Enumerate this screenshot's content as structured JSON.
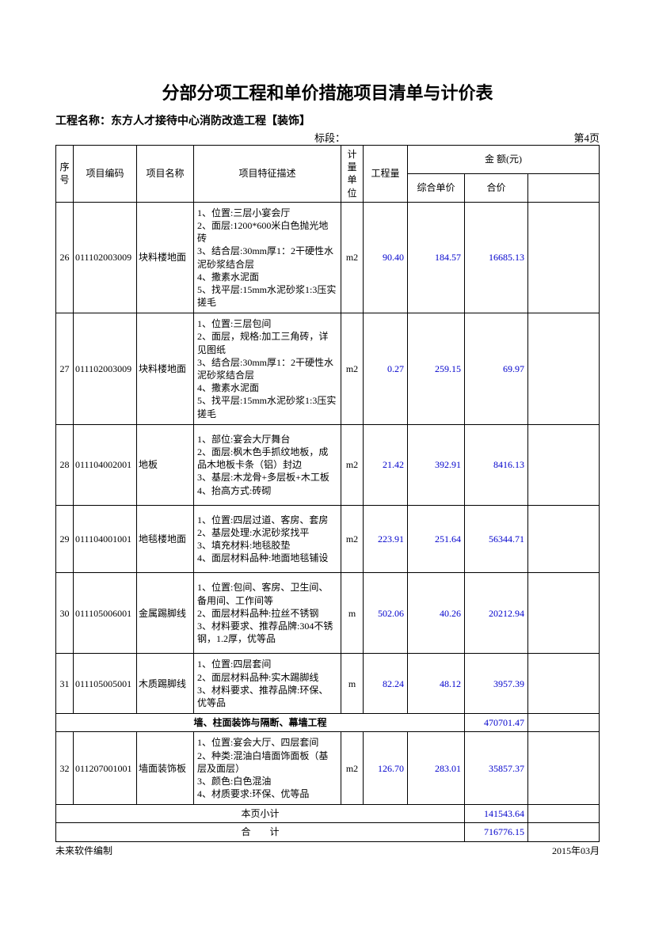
{
  "title": "分部分项工程和单价措施项目清单与计价表",
  "meta": {
    "project_label": "工程名称：",
    "project_name": "东方人才接待中心消防改造工程【装饰】",
    "bid_label": "标段：",
    "page_label": "第4页"
  },
  "columns": {
    "seq": "序号",
    "code": "项目编码",
    "name": "项目名称",
    "desc": "项目特征描述",
    "unit": "计量单位",
    "qty": "工程量",
    "amount_group": "金 额(元)",
    "unit_price": "综合单价",
    "total_price": "合价"
  },
  "rows": [
    {
      "seq": "26",
      "code": "011102003009",
      "name": "块料楼地面",
      "desc": "1、位置:三层小宴会厅\n2、面层:1200*600米白色抛光地砖\n3、结合层:30mm厚1：2干硬性水泥砂浆结合层\n4、撒素水泥面\n5、找平层:15mm水泥砂浆1:3压实搓毛",
      "unit": "m2",
      "qty": "90.40",
      "unit_price": "184.57",
      "total_price": "16685.13"
    },
    {
      "seq": "27",
      "code": "011102003009",
      "name": "块料楼地面",
      "desc": "1、位置:三层包间\n2、面层，规格:加工三角砖，详见图纸\n3、结合层:30mm厚1：2干硬性水泥砂浆结合层\n4、撒素水泥面\n5、找平层:15mm水泥砂浆1:3压实搓毛",
      "unit": "m2",
      "qty": "0.27",
      "unit_price": "259.15",
      "total_price": "69.97"
    },
    {
      "seq": "28",
      "code": "011104002001",
      "name": "地板",
      "desc": "1、部位:宴会大厅舞台\n2、面层:枫木色手抓纹地板，成品木地板卡条（铝）封边\n3、基层:木龙骨+多层板+木工板\n4、抬高方式:砖砌",
      "unit": "m2",
      "qty": "21.42",
      "unit_price": "392.91",
      "total_price": "8416.13"
    },
    {
      "seq": "29",
      "code": "011104001001",
      "name": "地毯楼地面",
      "desc": "1、位置:四层过道、客房、套房\n2、基层处理:水泥砂浆找平\n3、填充材料:地毯胶垫\n4、面层材料品种:地面地毯铺设",
      "unit": "m2",
      "qty": "223.91",
      "unit_price": "251.64",
      "total_price": "56344.71"
    },
    {
      "seq": "30",
      "code": "011105006001",
      "name": "金属踢脚线",
      "desc": "1、位置:包间、客房、卫生间、备用间、工作间等\n2、面层材料品种:拉丝不锈钢\n3、材料要求、推荐品牌:304不锈钢，1.2厚，优等品",
      "unit": "m",
      "qty": "502.06",
      "unit_price": "40.26",
      "total_price": "20212.94"
    },
    {
      "seq": "31",
      "code": "011105005001",
      "name": "木质踢脚线",
      "desc": "1、位置:四层套间\n2、面层材料品种:实木踢脚线\n3、材料要求、推荐品牌:环保、优等品",
      "unit": "m",
      "qty": "82.24",
      "unit_price": "48.12",
      "total_price": "3957.39"
    }
  ],
  "section": {
    "title": "墙、柱面装饰与隔断、幕墙工程",
    "total": "470701.47"
  },
  "rows2": [
    {
      "seq": "32",
      "code": "011207001001",
      "name": "墙面装饰板",
      "desc": "1、位置:宴会大厅、四层套间\n2、种类:混油白墙面饰面板（基层及面层）\n3、颜色:白色混油\n4、材质要求:环保、优等品",
      "unit": "m2",
      "qty": "126.70",
      "unit_price": "283.01",
      "total_price": "35857.37"
    }
  ],
  "subtotals": {
    "page_subtotal_label": "本页小计",
    "page_subtotal_value": "141543.64",
    "grand_total_label": "合　　计",
    "grand_total_value": "716776.15"
  },
  "footer": {
    "left": "未来软件编制",
    "right": "2015年03月"
  }
}
